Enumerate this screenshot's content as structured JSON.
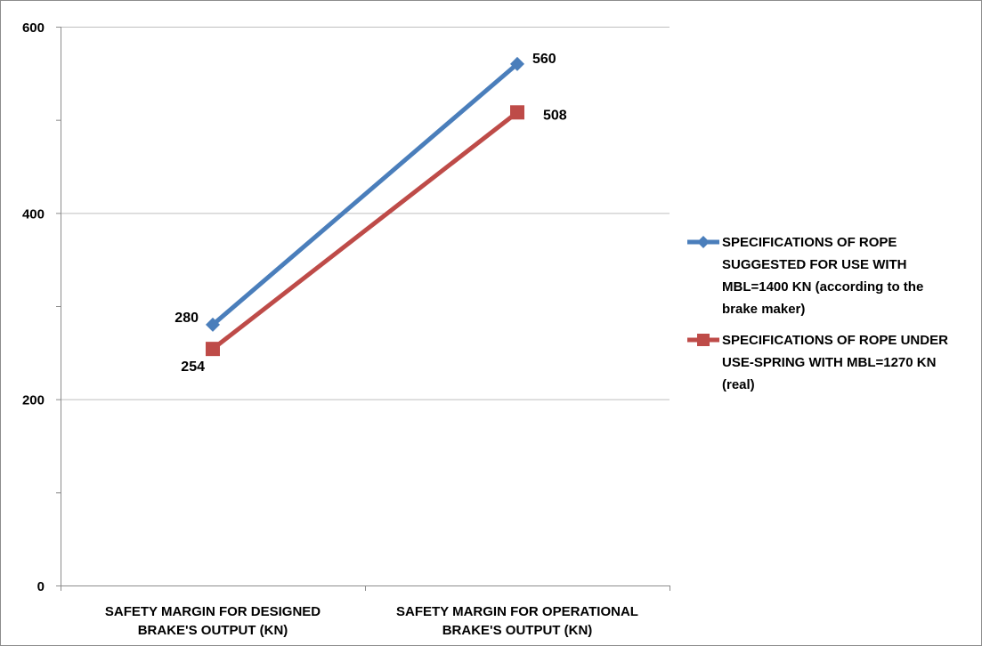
{
  "chart_data": {
    "type": "line",
    "categories": [
      [
        "SAFETY MARGIN FOR DESIGNED",
        "BRAKE'S OUTPUT (KN)"
      ],
      [
        "SAFETY MARGIN FOR OPERATIONAL",
        "BRAKE'S OUTPUT (KN)"
      ]
    ],
    "ylim": [
      0,
      600
    ],
    "yticks": [
      0,
      200,
      400,
      600
    ],
    "grid": true,
    "legend_position": "right",
    "series": [
      {
        "name_lines": [
          "SPECIFICATIONS OF ROPE",
          "SUGGESTED FOR USE WITH",
          "MBL=1400 KN (according to the",
          "brake maker)"
        ],
        "values": [
          280,
          560
        ],
        "labels": [
          "280",
          "560"
        ],
        "color": "#4a7ebb",
        "marker": "diamond"
      },
      {
        "name_lines": [
          "SPECIFICATIONS OF ROPE UNDER",
          "USE-SPRING WITH MBL=1270 KN",
          "(real)"
        ],
        "values": [
          254,
          508
        ],
        "labels": [
          "254",
          "508"
        ],
        "color": "#be4b48",
        "marker": "square"
      }
    ]
  }
}
